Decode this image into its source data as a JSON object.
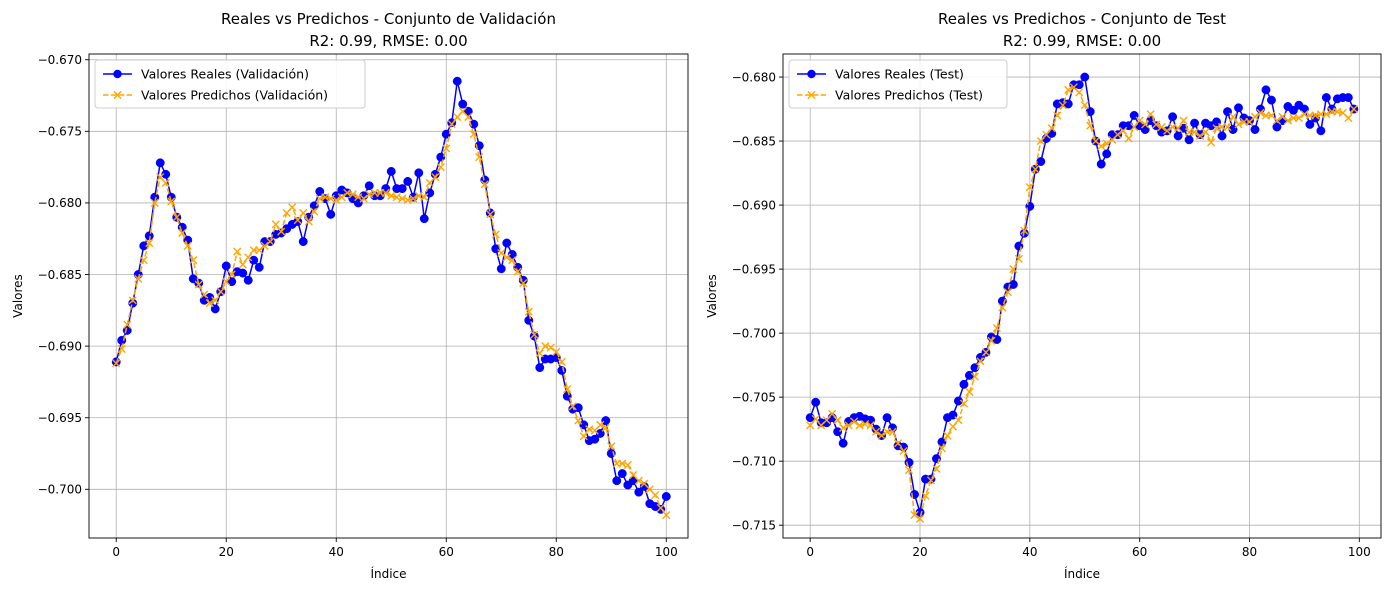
{
  "chart_data": [
    {
      "type": "line",
      "title": "Reales vs Predichos - Conjunto de Validación",
      "subtitle": "R2: 0.99, RMSE: 0.00",
      "xlabel": "Índice",
      "ylabel": "Valores",
      "xlim": [
        -4.95,
        103.95
      ],
      "ylim": [
        -0.7034,
        -0.6696
      ],
      "xticks": [
        0,
        20,
        40,
        60,
        80,
        100
      ],
      "xtick_labels": [
        "0",
        "20",
        "40",
        "60",
        "80",
        "100"
      ],
      "yticks": [
        -0.67,
        -0.675,
        -0.68,
        -0.685,
        -0.69,
        -0.695,
        -0.7
      ],
      "ytick_labels": [
        "−0.670",
        "−0.675",
        "−0.680",
        "−0.685",
        "−0.690",
        "−0.695",
        "−0.700"
      ],
      "grid": true,
      "legend_position": "upper-left",
      "series": [
        {
          "name": "Valores Reales (Validación)",
          "color": "#0000ff",
          "linestyle": "solid",
          "marker": "circle",
          "values": [
            -0.6911,
            -0.6896,
            -0.6889,
            -0.687,
            -0.685,
            -0.683,
            -0.6823,
            -0.6796,
            -0.6772,
            -0.678,
            -0.6796,
            -0.681,
            -0.6817,
            -0.6826,
            -0.6853,
            -0.6856,
            -0.6868,
            -0.6866,
            -0.6874,
            -0.6862,
            -0.6844,
            -0.6855,
            -0.6848,
            -0.6849,
            -0.6854,
            -0.684,
            -0.6845,
            -0.6827,
            -0.6827,
            -0.6822,
            -0.6821,
            -0.6818,
            -0.6815,
            -0.6813,
            -0.6827,
            -0.681,
            -0.6802,
            -0.6792,
            -0.6797,
            -0.6808,
            -0.6795,
            -0.6791,
            -0.6793,
            -0.6797,
            -0.68,
            -0.6795,
            -0.6788,
            -0.6795,
            -0.6795,
            -0.679,
            -0.6778,
            -0.679,
            -0.679,
            -0.6785,
            -0.6796,
            -0.6779,
            -0.6811,
            -0.6793,
            -0.678,
            -0.6768,
            -0.6752,
            -0.6744,
            -0.6715,
            -0.6731,
            -0.6736,
            -0.6745,
            -0.676,
            -0.6784,
            -0.6807,
            -0.6832,
            -0.6846,
            -0.6828,
            -0.6836,
            -0.6845,
            -0.6854,
            -0.6882,
            -0.6893,
            -0.6915,
            -0.6909,
            -0.6909,
            -0.6908,
            -0.6917,
            -0.6935,
            -0.6944,
            -0.6943,
            -0.6955,
            -0.6966,
            -0.6965,
            -0.6961,
            -0.6952,
            -0.6975,
            -0.6994,
            -0.6989,
            -0.6997,
            -0.6994,
            -0.7002,
            -0.6998,
            -0.701,
            -0.7012,
            -0.7014,
            -0.7005
          ]
        },
        {
          "name": "Valores Predichos (Validación)",
          "color": "#ffa500",
          "linestyle": "dashed",
          "marker": "x",
          "values": [
            -0.6912,
            -0.6902,
            -0.6885,
            -0.6868,
            -0.6853,
            -0.684,
            -0.6828,
            -0.68,
            -0.6782,
            -0.6786,
            -0.6799,
            -0.681,
            -0.6821,
            -0.683,
            -0.684,
            -0.6857,
            -0.6864,
            -0.687,
            -0.6868,
            -0.6862,
            -0.6855,
            -0.685,
            -0.6834,
            -0.6843,
            -0.6838,
            -0.6833,
            -0.6833,
            -0.683,
            -0.6827,
            -0.6815,
            -0.682,
            -0.6807,
            -0.6803,
            -0.6812,
            -0.6807,
            -0.6813,
            -0.6806,
            -0.6797,
            -0.6796,
            -0.6797,
            -0.6798,
            -0.6796,
            -0.6793,
            -0.6794,
            -0.6796,
            -0.6797,
            -0.6794,
            -0.6793,
            -0.6793,
            -0.6793,
            -0.6795,
            -0.6796,
            -0.6797,
            -0.6798,
            -0.6797,
            -0.6795,
            -0.6796,
            -0.6786,
            -0.6782,
            -0.6775,
            -0.6762,
            -0.6745,
            -0.674,
            -0.6736,
            -0.674,
            -0.6752,
            -0.6768,
            -0.6787,
            -0.6808,
            -0.6822,
            -0.6835,
            -0.6838,
            -0.684,
            -0.6848,
            -0.6856,
            -0.6876,
            -0.6892,
            -0.6905,
            -0.69,
            -0.6901,
            -0.6904,
            -0.6911,
            -0.693,
            -0.6942,
            -0.6952,
            -0.6963,
            -0.6958,
            -0.6959,
            -0.6955,
            -0.6957,
            -0.697,
            -0.6982,
            -0.6982,
            -0.6983,
            -0.699,
            -0.6994,
            -0.6996,
            -0.7,
            -0.7004,
            -0.7013,
            -0.7018
          ]
        }
      ]
    },
    {
      "type": "line",
      "title": "Reales vs Predichos - Conjunto de Test",
      "subtitle": "R2: 0.99, RMSE: 0.00",
      "xlabel": "Índice",
      "ylabel": "Valores",
      "xlim": [
        -4.95,
        103.95
      ],
      "ylim": [
        -0.716,
        -0.6782
      ],
      "xticks": [
        0,
        20,
        40,
        60,
        80,
        100
      ],
      "xtick_labels": [
        "0",
        "20",
        "40",
        "60",
        "80",
        "100"
      ],
      "yticks": [
        -0.68,
        -0.685,
        -0.69,
        -0.695,
        -0.7,
        -0.705,
        -0.71,
        -0.715
      ],
      "ytick_labels": [
        "−0.680",
        "−0.685",
        "−0.690",
        "−0.695",
        "−0.700",
        "−0.705",
        "−0.710",
        "−0.715"
      ],
      "grid": true,
      "legend_position": "upper-left",
      "series": [
        {
          "name": "Valores Reales (Test)",
          "color": "#0000ff",
          "linestyle": "solid",
          "marker": "circle",
          "values": [
            -0.7066,
            -0.7054,
            -0.707,
            -0.707,
            -0.7066,
            -0.7077,
            -0.7086,
            -0.7069,
            -0.7066,
            -0.7065,
            -0.7067,
            -0.7068,
            -0.7075,
            -0.708,
            -0.7066,
            -0.7074,
            -0.7088,
            -0.7089,
            -0.7101,
            -0.7126,
            -0.714,
            -0.7114,
            -0.7114,
            -0.7098,
            -0.7085,
            -0.7066,
            -0.7064,
            -0.7053,
            -0.704,
            -0.7033,
            -0.7027,
            -0.7019,
            -0.7015,
            -0.7003,
            -0.7005,
            -0.6975,
            -0.6964,
            -0.6962,
            -0.6932,
            -0.6922,
            -0.6901,
            -0.6872,
            -0.6866,
            -0.6848,
            -0.6844,
            -0.6821,
            -0.682,
            -0.6821,
            -0.6806,
            -0.6806,
            -0.68,
            -0.6827,
            -0.685,
            -0.6868,
            -0.686,
            -0.6845,
            -0.6845,
            -0.6838,
            -0.6838,
            -0.683,
            -0.6838,
            -0.6841,
            -0.6834,
            -0.6838,
            -0.6843,
            -0.6842,
            -0.6831,
            -0.6846,
            -0.684,
            -0.6849,
            -0.6836,
            -0.6845,
            -0.6836,
            -0.6838,
            -0.6835,
            -0.6846,
            -0.6827,
            -0.6841,
            -0.6824,
            -0.6832,
            -0.6834,
            -0.6841,
            -0.6825,
            -0.681,
            -0.6818,
            -0.6839,
            -0.6834,
            -0.6823,
            -0.6826,
            -0.6822,
            -0.6825,
            -0.6837,
            -0.6832,
            -0.6842,
            -0.6816,
            -0.6825,
            -0.6817,
            -0.6816,
            -0.6816,
            -0.6825
          ]
        },
        {
          "name": "Valores Predichos (Test)",
          "color": "#ffa500",
          "linestyle": "dashed",
          "marker": "x",
          "values": [
            -0.7072,
            -0.7067,
            -0.7072,
            -0.7068,
            -0.7063,
            -0.7068,
            -0.7074,
            -0.7072,
            -0.7069,
            -0.7072,
            -0.7071,
            -0.7072,
            -0.7077,
            -0.708,
            -0.7077,
            -0.7077,
            -0.7086,
            -0.7092,
            -0.7107,
            -0.7142,
            -0.7145,
            -0.7127,
            -0.7115,
            -0.7106,
            -0.709,
            -0.708,
            -0.7073,
            -0.7068,
            -0.7055,
            -0.7046,
            -0.7034,
            -0.7022,
            -0.7015,
            -0.7006,
            -0.6996,
            -0.698,
            -0.6968,
            -0.695,
            -0.6942,
            -0.692,
            -0.6886,
            -0.6872,
            -0.685,
            -0.6845,
            -0.684,
            -0.683,
            -0.6822,
            -0.681,
            -0.6808,
            -0.6812,
            -0.6822,
            -0.6838,
            -0.685,
            -0.6854,
            -0.6852,
            -0.6849,
            -0.6845,
            -0.6842,
            -0.6848,
            -0.6839,
            -0.6834,
            -0.6837,
            -0.6829,
            -0.6837,
            -0.6839,
            -0.6842,
            -0.6839,
            -0.684,
            -0.6834,
            -0.6843,
            -0.6843,
            -0.6846,
            -0.6843,
            -0.6851,
            -0.684,
            -0.6839,
            -0.6839,
            -0.6831,
            -0.6837,
            -0.6835,
            -0.6835,
            -0.6831,
            -0.6828,
            -0.683,
            -0.683,
            -0.6834,
            -0.6831,
            -0.6834,
            -0.6832,
            -0.6832,
            -0.6829,
            -0.683,
            -0.683,
            -0.6829,
            -0.6829,
            -0.6827,
            -0.6827,
            -0.6828,
            -0.6832,
            -0.6825
          ]
        }
      ]
    }
  ]
}
